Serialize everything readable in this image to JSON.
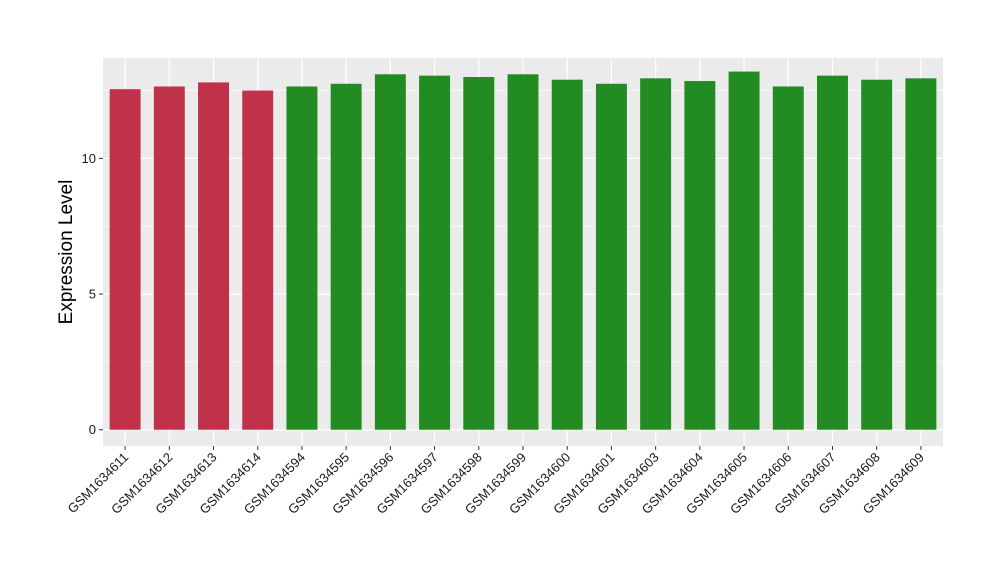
{
  "chart_data": {
    "type": "bar",
    "title": "",
    "xlabel": "",
    "ylabel": "Expression Level",
    "ylim": [
      -0.6,
      13.7
    ],
    "yticks": [
      0,
      5,
      10
    ],
    "grid": true,
    "legend": "none",
    "panel_background": "#ebebeb",
    "grid_color": "#ffffff",
    "categories": [
      "GSM1634611",
      "GSM1634612",
      "GSM1634613",
      "GSM1634614",
      "GSM1634594",
      "GSM1634595",
      "GSM1634596",
      "GSM1634597",
      "GSM1634598",
      "GSM1634599",
      "GSM1634600",
      "GSM1634601",
      "GSM1634603",
      "GSM1634604",
      "GSM1634605",
      "GSM1634606",
      "GSM1634607",
      "GSM1634608",
      "GSM1634609"
    ],
    "values": [
      12.55,
      12.65,
      12.8,
      12.5,
      12.65,
      12.75,
      13.1,
      13.05,
      13.0,
      13.1,
      12.9,
      12.75,
      12.95,
      12.85,
      13.2,
      12.65,
      13.05,
      12.9,
      12.95
    ],
    "bar_colors": [
      "#c0314a",
      "#c0314a",
      "#c0314a",
      "#c0314a",
      "#228b22",
      "#228b22",
      "#228b22",
      "#228b22",
      "#228b22",
      "#228b22",
      "#228b22",
      "#228b22",
      "#228b22",
      "#228b22",
      "#228b22",
      "#228b22",
      "#228b22",
      "#228b22",
      "#228b22"
    ]
  }
}
